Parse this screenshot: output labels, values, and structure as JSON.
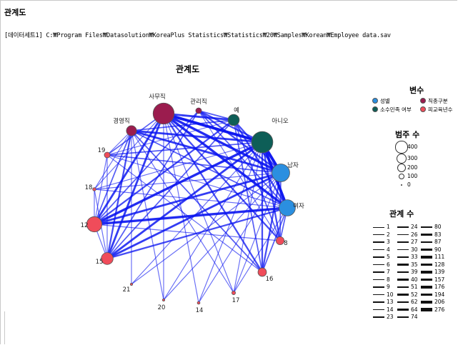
{
  "page": {
    "title": "관계도",
    "dataset_path": "[데이터세트1] C:₩Program Files₩Datasolution₩KoreaPlus Statistics₩Statistics₩20₩Samples₩Korean₩Employee data.sav"
  },
  "chart_data": {
    "type": "network",
    "title": "관계도",
    "nodes": [
      {
        "label": "사무직",
        "group": "직종구분",
        "count": 363
      },
      {
        "label": "관리직",
        "group": "직종구분",
        "count": 27
      },
      {
        "label": "경영직",
        "group": "직종구분",
        "count": 84
      },
      {
        "label": "예",
        "group": "소수민족 여부",
        "count": 104
      },
      {
        "label": "아니오",
        "group": "소수민족 여부",
        "count": 370
      },
      {
        "label": "남자",
        "group": "성별",
        "count": 258
      },
      {
        "label": "여자",
        "group": "성별",
        "count": 216
      },
      {
        "label": "8",
        "group": "피교육년수",
        "count": 53
      },
      {
        "label": "12",
        "group": "피교육년수",
        "count": 190
      },
      {
        "label": "14",
        "group": "피교육년수",
        "count": 6
      },
      {
        "label": "15",
        "group": "피교육년수",
        "count": 116
      },
      {
        "label": "16",
        "group": "피교육년수",
        "count": 59
      },
      {
        "label": "17",
        "group": "피교육년수",
        "count": 11
      },
      {
        "label": "18",
        "group": "피교육년수",
        "count": 9
      },
      {
        "label": "19",
        "group": "피교육년수",
        "count": 27
      },
      {
        "label": "20",
        "group": "피교육년수",
        "count": 2
      },
      {
        "label": "21",
        "group": "피교육년수",
        "count": 1
      }
    ],
    "legend_variables": {
      "title": "변수",
      "items": [
        {
          "label": "성별",
          "color": "#2b8fe0"
        },
        {
          "label": "직종구분",
          "color": "#9b1c4e"
        },
        {
          "label": "소수민족 여부",
          "color": "#0e5e57"
        },
        {
          "label": "피교육년수",
          "color": "#f04c5a"
        }
      ]
    },
    "legend_size": {
      "title": "범주 수",
      "values": [
        "400",
        "300",
        "200",
        "100",
        "0"
      ]
    },
    "legend_links": {
      "title": "관계 수",
      "columns": [
        [
          "1",
          "2",
          "3",
          "4",
          "5",
          "6",
          "7",
          "8",
          "9",
          "10",
          "13",
          "14",
          "23"
        ],
        [
          "24",
          "26",
          "27",
          "30",
          "33",
          "35",
          "39",
          "40",
          "51",
          "52",
          "62",
          "64",
          "74"
        ],
        [
          "80",
          "83",
          "87",
          "90",
          "111",
          "128",
          "139",
          "157",
          "176",
          "194",
          "206",
          "276"
        ]
      ]
    },
    "colors": {
      "edge": "#0a14f0",
      "node_outline": "#555555"
    }
  }
}
